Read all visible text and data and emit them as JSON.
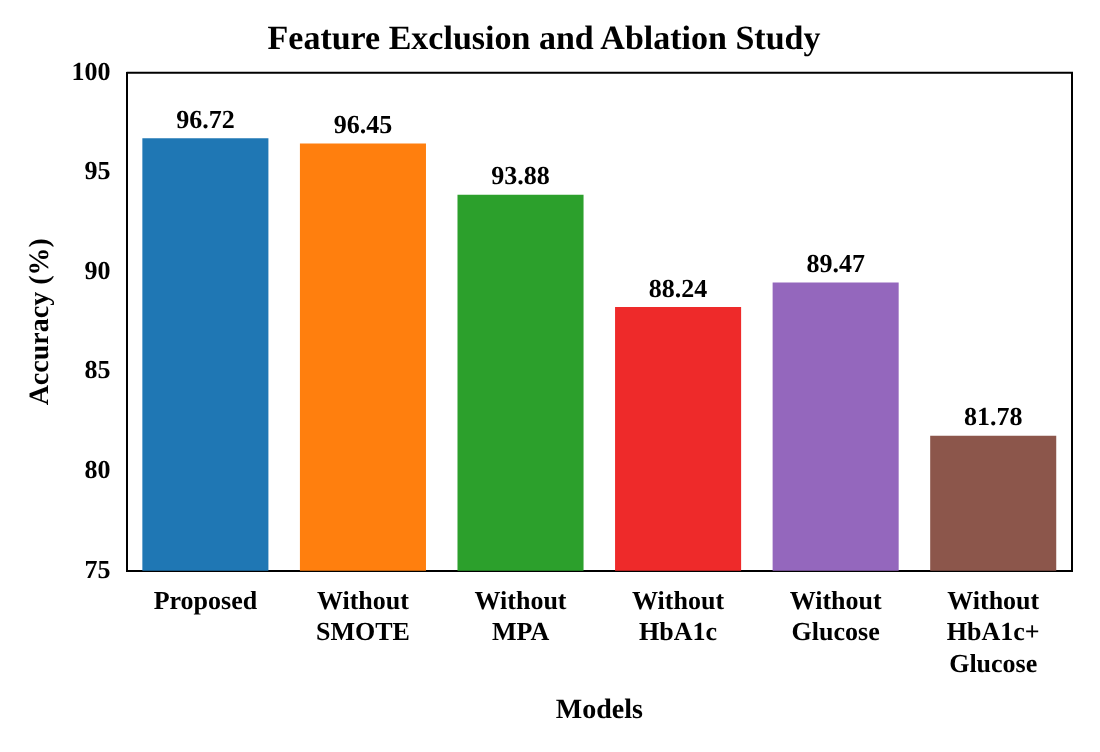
{
  "chart_data": {
    "type": "bar",
    "title": "Feature Exclusion and Ablation Study",
    "xlabel": "Models",
    "ylabel": "Accuracy (%)",
    "categories": [
      "Proposed",
      "Without SMOTE",
      "Without MPA",
      "Without HbA1c",
      "Without Glucose",
      "Without HbA1c+ Glucose"
    ],
    "values": [
      96.72,
      96.45,
      93.88,
      88.24,
      89.47,
      81.78
    ],
    "colors": [
      "#1f77b4",
      "#ff7f0e",
      "#2ca02c",
      "#ee2a2a",
      "#9467bd",
      "#8c564b"
    ],
    "ylim": [
      75,
      100
    ],
    "yticks": [
      75,
      80,
      85,
      90,
      95,
      100
    ],
    "data_labels": true,
    "grid": false,
    "legend": false
  }
}
